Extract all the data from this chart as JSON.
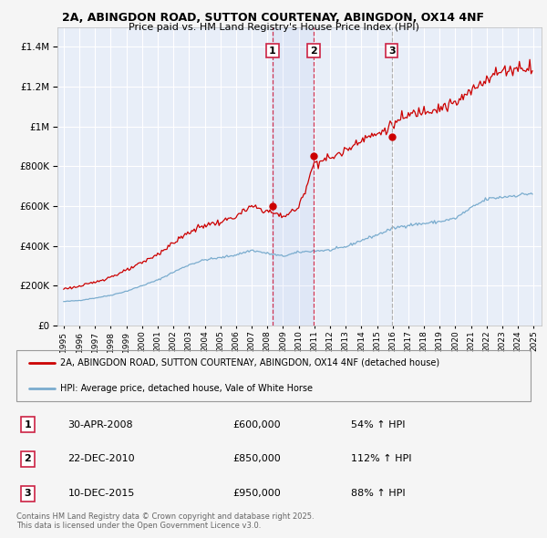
{
  "title_line1": "2A, ABINGDON ROAD, SUTTON COURTENAY, ABINGDON, OX14 4NF",
  "title_line2": "Price paid vs. HM Land Registry's House Price Index (HPI)",
  "background_color": "#f5f5f5",
  "plot_bg_color": "#e8eef8",
  "grid_color": "#ffffff",
  "red_line_color": "#cc0000",
  "blue_line_color": "#7aacce",
  "sale_times": [
    2008.33,
    2010.96,
    2015.95
  ],
  "sale_prices": [
    600000,
    850000,
    950000
  ],
  "sale_labels": [
    "1",
    "2",
    "3"
  ],
  "legend_line1": "2A, ABINGDON ROAD, SUTTON COURTENAY, ABINGDON, OX14 4NF (detached house)",
  "legend_line2": "HPI: Average price, detached house, Vale of White Horse",
  "footer_line1": "Contains HM Land Registry data © Crown copyright and database right 2025.",
  "footer_line2": "This data is licensed under the Open Government Licence v3.0.",
  "table_entries": [
    {
      "num": "1",
      "date": "30-APR-2008",
      "price": "£600,000",
      "pct": "54% ↑ HPI"
    },
    {
      "num": "2",
      "date": "22-DEC-2010",
      "price": "£850,000",
      "pct": "112% ↑ HPI"
    },
    {
      "num": "3",
      "date": "10-DEC-2015",
      "price": "£950,000",
      "pct": "88% ↑ HPI"
    }
  ],
  "ylim": [
    0,
    1500000
  ],
  "yticks": [
    0,
    200000,
    400000,
    600000,
    800000,
    1000000,
    1200000,
    1400000
  ],
  "xlim_start": 1994.6,
  "xlim_end": 2025.5,
  "hpi_yearly": {
    "1995": 120000,
    "1996": 126000,
    "1997": 138000,
    "1998": 152000,
    "1999": 172000,
    "2000": 200000,
    "2001": 228000,
    "2002": 268000,
    "2003": 305000,
    "2004": 330000,
    "2005": 340000,
    "2006": 355000,
    "2007": 378000,
    "2008": 362000,
    "2009": 348000,
    "2010": 368000,
    "2011": 375000,
    "2012": 378000,
    "2013": 395000,
    "2014": 428000,
    "2015": 455000,
    "2016": 488000,
    "2017": 505000,
    "2018": 512000,
    "2019": 522000,
    "2020": 538000,
    "2021": 590000,
    "2022": 635000,
    "2023": 645000,
    "2024": 655000,
    "2025": 665000
  },
  "red_yearly": {
    "1995": 185000,
    "1996": 196000,
    "1997": 218000,
    "1998": 244000,
    "1999": 276000,
    "2000": 315000,
    "2001": 358000,
    "2002": 415000,
    "2003": 468000,
    "2004": 505000,
    "2005": 518000,
    "2006": 548000,
    "2007": 598000,
    "2008": 575000,
    "2009": 548000,
    "2010": 590000,
    "2011": 820000,
    "2012": 840000,
    "2013": 878000,
    "2014": 940000,
    "2015": 958000,
    "2016": 1010000,
    "2017": 1055000,
    "2018": 1082000,
    "2019": 1095000,
    "2020": 1115000,
    "2021": 1175000,
    "2022": 1245000,
    "2023": 1278000,
    "2024": 1295000,
    "2025": 1300000
  }
}
